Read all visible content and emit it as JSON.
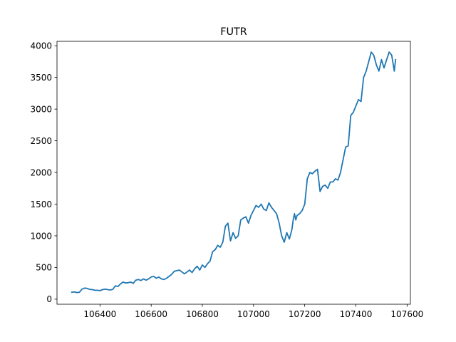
{
  "chart_data": {
    "type": "line",
    "title": "FUTR",
    "xlabel": "",
    "ylabel": "",
    "xlim": [
      106290,
      107555
    ],
    "ylim": [
      0,
      4000
    ],
    "x_ticks": [
      106400,
      106600,
      106800,
      107000,
      107200,
      107400,
      107600
    ],
    "y_ticks": [
      0,
      500,
      1000,
      1500,
      2000,
      2500,
      3000,
      3500,
      4000
    ],
    "grid": false,
    "legend": "none",
    "series": [
      {
        "color": "#1f77b4",
        "x": [
          106290,
          106300,
          106310,
          106320,
          106330,
          106340,
          106350,
          106360,
          106370,
          106380,
          106390,
          106400,
          106410,
          106420,
          106430,
          106440,
          106450,
          106460,
          106470,
          106480,
          106490,
          106500,
          106510,
          106520,
          106530,
          106540,
          106550,
          106560,
          106570,
          106580,
          106590,
          106600,
          106610,
          106620,
          106630,
          106640,
          106650,
          106660,
          106670,
          106680,
          106690,
          106700,
          106710,
          106720,
          106730,
          106740,
          106750,
          106760,
          106770,
          106780,
          106790,
          106800,
          106810,
          106820,
          106830,
          106840,
          106850,
          106860,
          106870,
          106880,
          106890,
          106900,
          106910,
          106920,
          106930,
          106940,
          106950,
          106960,
          106970,
          106980,
          106990,
          107000,
          107010,
          107020,
          107030,
          107040,
          107050,
          107060,
          107070,
          107080,
          107090,
          107100,
          107110,
          107120,
          107130,
          107140,
          107150,
          107155,
          107160,
          107165,
          107170,
          107180,
          107190,
          107200,
          107210,
          107220,
          107230,
          107240,
          107250,
          107260,
          107270,
          107280,
          107290,
          107300,
          107310,
          107320,
          107330,
          107340,
          107350,
          107360,
          107370,
          107380,
          107390,
          107400,
          107410,
          107420,
          107430,
          107440,
          107450,
          107460,
          107470,
          107480,
          107490,
          107500,
          107510,
          107520,
          107530,
          107540,
          107550,
          107555
        ],
        "y": [
          110,
          115,
          105,
          110,
          160,
          175,
          170,
          155,
          150,
          140,
          140,
          135,
          150,
          160,
          150,
          145,
          155,
          210,
          200,
          240,
          270,
          255,
          260,
          270,
          250,
          300,
          310,
          295,
          320,
          300,
          320,
          350,
          360,
          330,
          350,
          320,
          310,
          330,
          360,
          390,
          440,
          450,
          460,
          430,
          400,
          430,
          460,
          420,
          480,
          520,
          460,
          540,
          500,
          560,
          600,
          750,
          780,
          850,
          820,
          900,
          1150,
          1200,
          920,
          1050,
          960,
          1000,
          1250,
          1280,
          1300,
          1200,
          1320,
          1400,
          1480,
          1450,
          1500,
          1420,
          1400,
          1520,
          1450,
          1400,
          1350,
          1200,
          1000,
          900,
          1050,
          950,
          1100,
          1250,
          1350,
          1250,
          1320,
          1350,
          1400,
          1500,
          1900,
          2000,
          1980,
          2020,
          2050,
          1700,
          1780,
          1800,
          1750,
          1850,
          1850,
          1900,
          1880,
          2000,
          2200,
          2400,
          2420,
          2900,
          2950,
          3050,
          3150,
          3120,
          3500,
          3600,
          3750,
          3900,
          3850,
          3700,
          3600,
          3780,
          3650,
          3780,
          3900,
          3850,
          3600,
          3780
        ]
      }
    ]
  }
}
